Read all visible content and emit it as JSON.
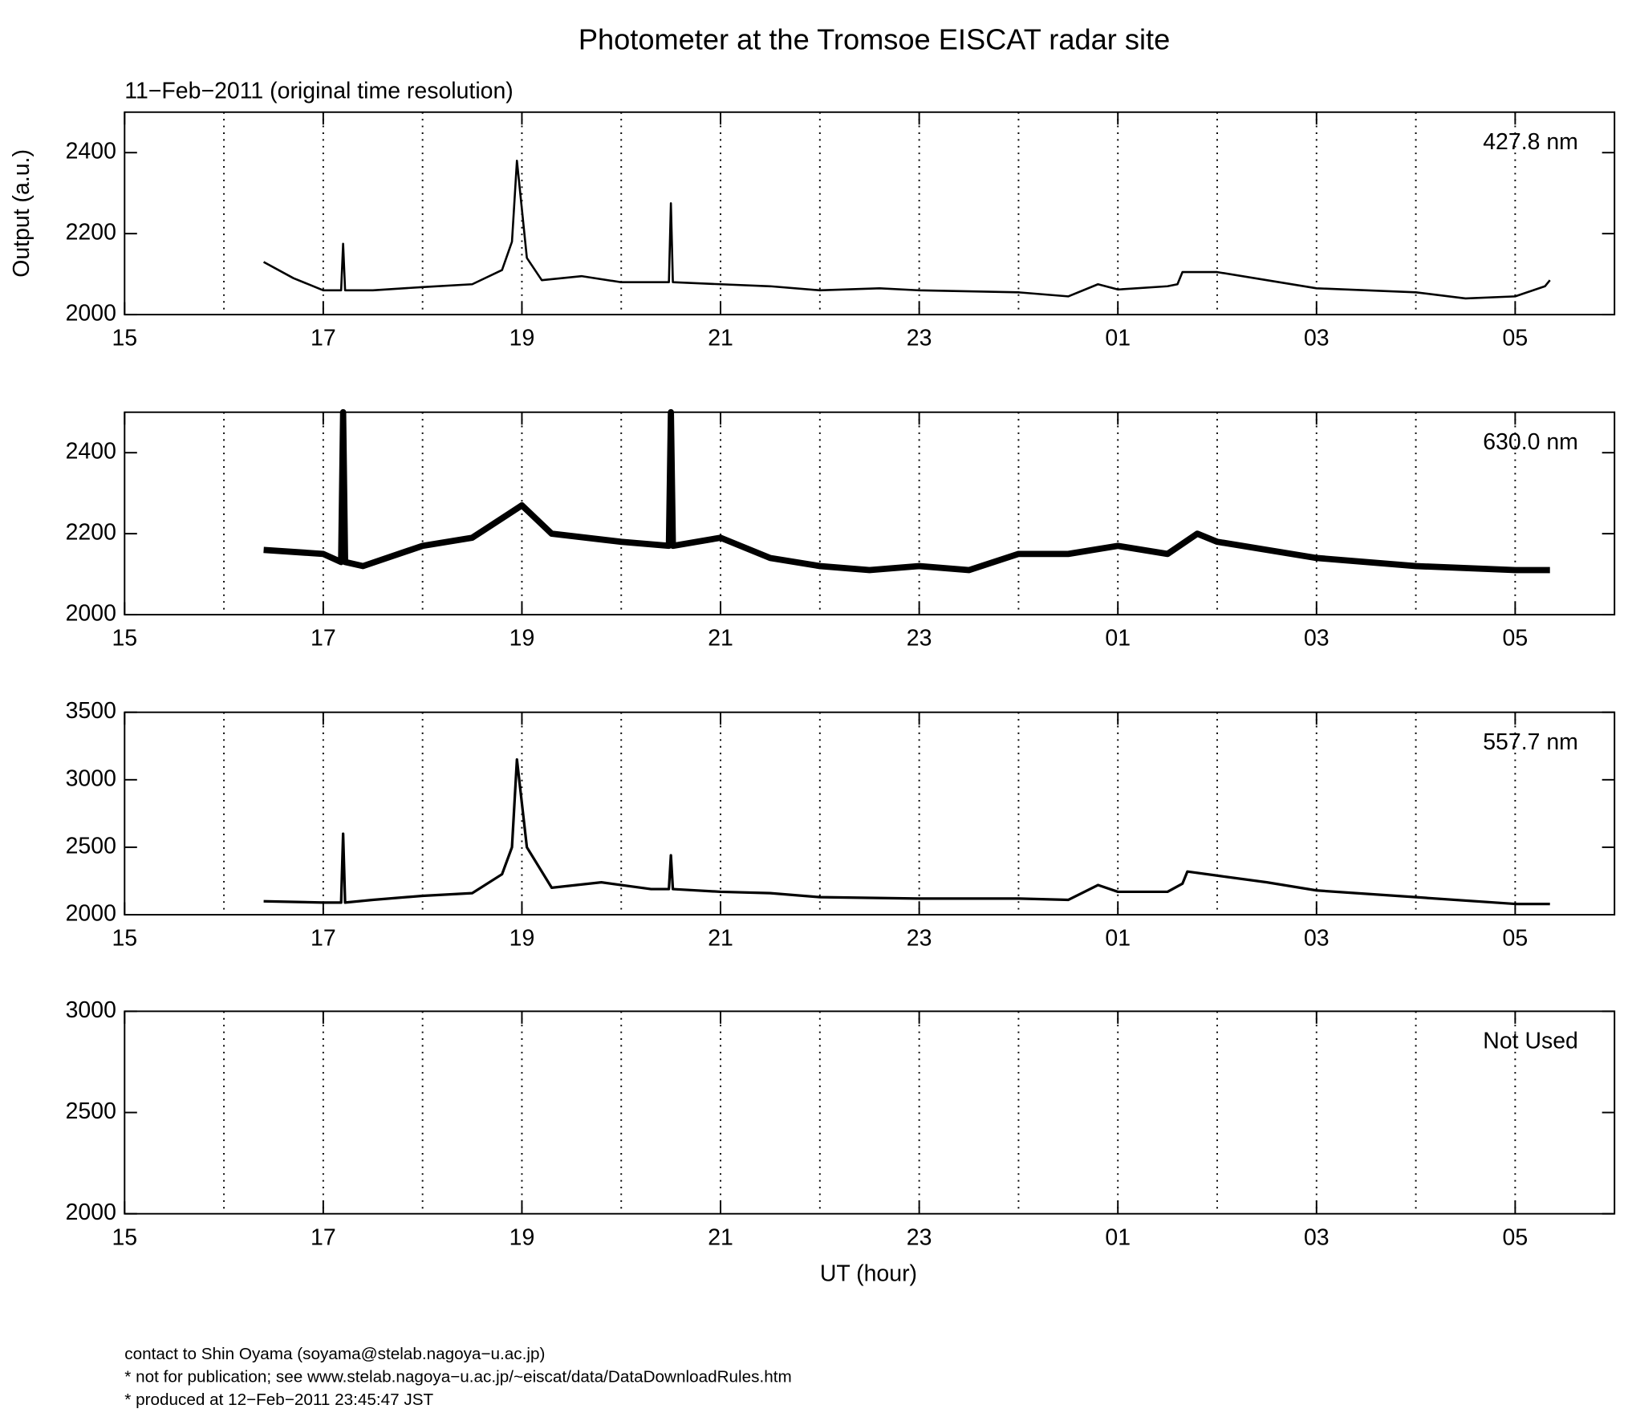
{
  "title": "Photometer at the Tromsoe EISCAT radar site",
  "subtitle": "11−Feb−2011 (original time resolution)",
  "footer": [
    "contact to Shin Oyama (soyama@stelab.nagoya−u.ac.jp)",
    "* not for publication; see www.stelab.nagoya−u.ac.jp/~eiscat/data/DataDownloadRules.htm",
    "* produced at 12−Feb−2011 23:45:47 JST"
  ],
  "chart_data": [
    {
      "type": "line",
      "annotation": "427.8 nm",
      "ylabel": "Output (a.u.)",
      "xlim": [
        15,
        30
      ],
      "xticks": [
        15,
        17,
        19,
        21,
        23,
        {
          "value": 25,
          "label": "01"
        },
        {
          "value": 27,
          "label": "03"
        },
        {
          "value": 29,
          "label": "05"
        }
      ],
      "xgrid": [
        16,
        17,
        18,
        19,
        20,
        21,
        22,
        23,
        24,
        25,
        26,
        27,
        28,
        29
      ],
      "ylim": [
        2000,
        2500
      ],
      "yticks": [
        2000,
        2200,
        2400
      ],
      "series": [
        {
          "color": "#000000",
          "x": [
            16.4,
            16.7,
            17.0,
            17.18,
            17.2,
            17.22,
            17.5,
            18.0,
            18.5,
            18.8,
            18.9,
            18.95,
            19.05,
            19.2,
            19.6,
            20.0,
            20.48,
            20.5,
            20.52,
            21.0,
            21.5,
            22.0,
            22.6,
            23.0,
            24.0,
            24.5,
            24.8,
            25.0,
            25.5,
            25.6,
            25.65,
            26.0,
            26.5,
            27.0,
            28.0,
            28.5,
            29.0,
            29.3,
            29.35
          ],
          "values": [
            2130,
            2090,
            2060,
            2060,
            2175,
            2060,
            2060,
            2068,
            2075,
            2110,
            2180,
            2380,
            2140,
            2085,
            2095,
            2080,
            2080,
            2275,
            2080,
            2075,
            2070,
            2060,
            2065,
            2060,
            2055,
            2045,
            2075,
            2062,
            2070,
            2075,
            2105,
            2105,
            2085,
            2065,
            2055,
            2040,
            2045,
            2070,
            2085
          ]
        }
      ]
    },
    {
      "type": "line",
      "annotation": "630.0 nm",
      "xlim": [
        15,
        30
      ],
      "xticks": [
        15,
        17,
        19,
        21,
        23,
        {
          "value": 25,
          "label": "01"
        },
        {
          "value": 27,
          "label": "03"
        },
        {
          "value": 29,
          "label": "05"
        }
      ],
      "xgrid": [
        16,
        17,
        18,
        19,
        20,
        21,
        22,
        23,
        24,
        25,
        26,
        27,
        28,
        29
      ],
      "ylim": [
        2000,
        2500
      ],
      "yticks": [
        2000,
        2200,
        2400
      ],
      "series": [
        {
          "color": "#000000",
          "x": [
            16.4,
            17.0,
            17.18,
            17.2,
            17.22,
            17.4,
            18.0,
            18.5,
            19.0,
            19.3,
            20.0,
            20.48,
            20.5,
            20.52,
            21.0,
            21.5,
            22.0,
            22.5,
            23.0,
            23.5,
            24.0,
            24.5,
            25.0,
            25.5,
            25.8,
            26.0,
            27.0,
            28.0,
            29.0,
            29.35
          ],
          "values": [
            2160,
            2150,
            2130,
            2500,
            2130,
            2120,
            2170,
            2190,
            2270,
            2200,
            2180,
            2170,
            2500,
            2170,
            2190,
            2140,
            2120,
            2110,
            2120,
            2110,
            2150,
            2150,
            2170,
            2150,
            2200,
            2180,
            2140,
            2120,
            2110,
            2110
          ]
        }
      ]
    },
    {
      "type": "line",
      "annotation": "557.7 nm",
      "xlim": [
        15,
        30
      ],
      "xticks": [
        15,
        17,
        19,
        21,
        23,
        {
          "value": 25,
          "label": "01"
        },
        {
          "value": 27,
          "label": "03"
        },
        {
          "value": 29,
          "label": "05"
        }
      ],
      "xgrid": [
        16,
        17,
        18,
        19,
        20,
        21,
        22,
        23,
        24,
        25,
        26,
        27,
        28,
        29
      ],
      "ylim": [
        2000,
        3500
      ],
      "yticks": [
        2000,
        2500,
        3000,
        3500
      ],
      "series": [
        {
          "color": "#000000",
          "x": [
            16.4,
            17.0,
            17.18,
            17.2,
            17.22,
            17.5,
            18.0,
            18.5,
            18.8,
            18.9,
            18.95,
            19.05,
            19.3,
            19.8,
            20.3,
            20.48,
            20.5,
            20.52,
            21.0,
            21.5,
            22.0,
            23.0,
            24.0,
            24.5,
            24.8,
            25.0,
            25.5,
            25.65,
            25.7,
            26.0,
            26.5,
            27.0,
            28.0,
            29.0,
            29.35
          ],
          "values": [
            2100,
            2090,
            2090,
            2600,
            2090,
            2110,
            2140,
            2160,
            2300,
            2500,
            3150,
            2500,
            2200,
            2240,
            2190,
            2190,
            2440,
            2190,
            2170,
            2160,
            2130,
            2120,
            2120,
            2110,
            2220,
            2170,
            2170,
            2230,
            2320,
            2290,
            2240,
            2180,
            2130,
            2080,
            2080
          ]
        }
      ]
    },
    {
      "type": "line",
      "annotation": "Not Used",
      "xlabel": "UT (hour)",
      "xlim": [
        15,
        30
      ],
      "xticks": [
        15,
        17,
        19,
        21,
        23,
        {
          "value": 25,
          "label": "01"
        },
        {
          "value": 27,
          "label": "03"
        },
        {
          "value": 29,
          "label": "05"
        }
      ],
      "xgrid": [
        16,
        17,
        18,
        19,
        20,
        21,
        22,
        23,
        24,
        25,
        26,
        27,
        28,
        29
      ],
      "ylim": [
        2000,
        3000
      ],
      "yticks": [
        2000,
        2500,
        3000
      ],
      "series": []
    }
  ]
}
